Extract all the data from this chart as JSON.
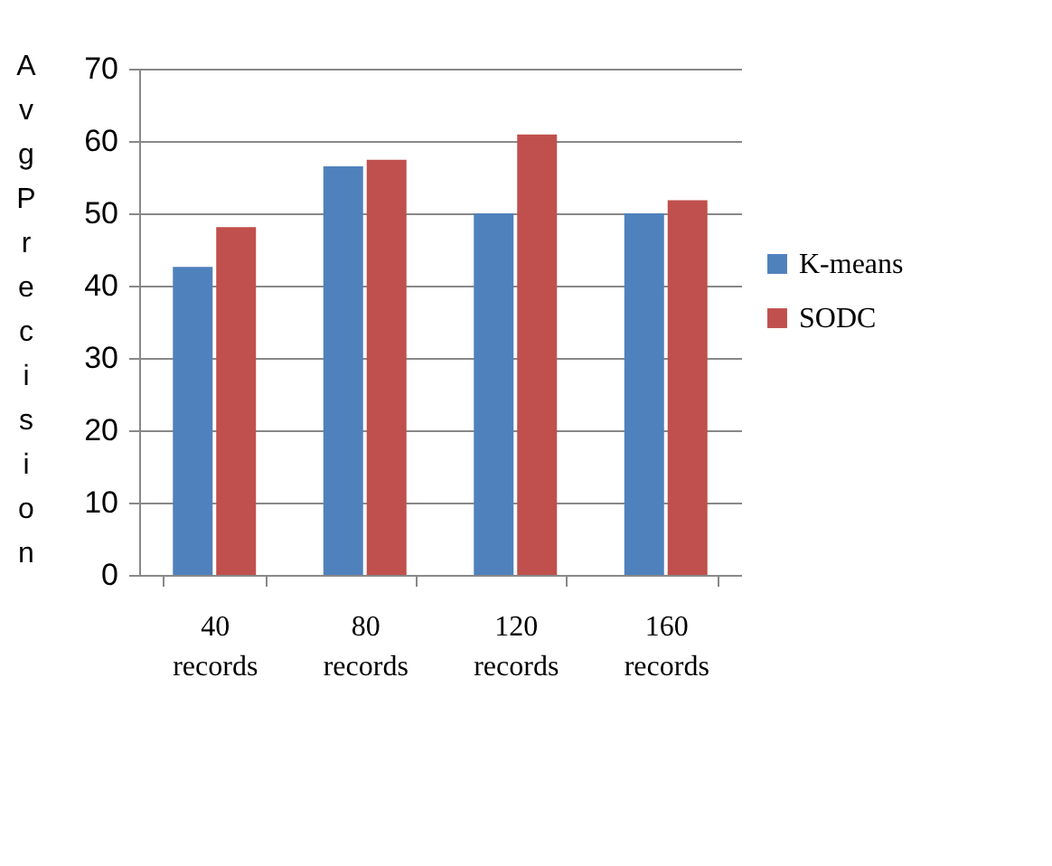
{
  "chart_data": {
    "type": "bar",
    "ylabel": "Avg Precision",
    "categories": [
      "40 records",
      "80 records",
      "120 records",
      "160 records"
    ],
    "series": [
      {
        "name": "K-means",
        "color": "#4f81bd",
        "values": [
          42.6,
          56.5,
          50,
          50
        ]
      },
      {
        "name": "SODC",
        "color": "#c0504d",
        "values": [
          48.1,
          57.4,
          60.9,
          51.8
        ]
      }
    ],
    "ylim": [
      0,
      70
    ],
    "yticks": [
      0,
      10,
      20,
      30,
      40,
      50,
      60,
      70
    ],
    "grid": "y",
    "legend": "right"
  }
}
